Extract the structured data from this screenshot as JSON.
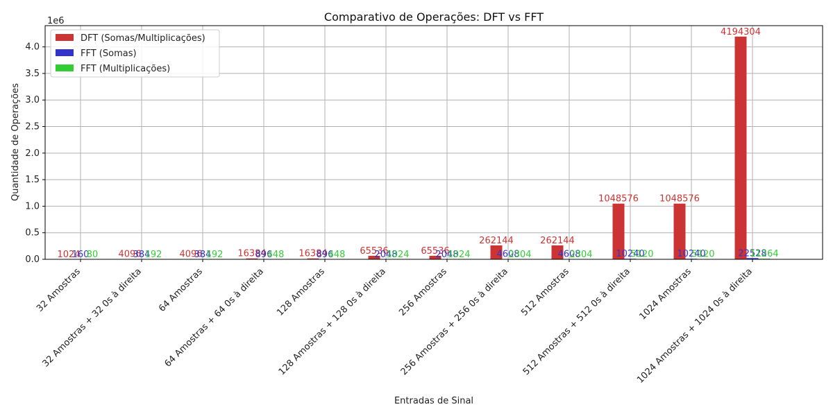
{
  "chart_data": {
    "type": "bar",
    "title": "Comparativo de Operações: DFT vs FFT",
    "xlabel": "Entradas de Sinal",
    "ylabel": "Quantidade de Operações",
    "y_scale_label": "1e6",
    "ylim": [
      0,
      4.4
    ],
    "yticks": [
      "0.0",
      "0.5",
      "1.0",
      "1.5",
      "2.0",
      "2.5",
      "3.0",
      "3.5",
      "4.0"
    ],
    "grid": true,
    "legend_position": "top-left",
    "categories": [
      "32 Amostras",
      "32 Amostras + 32 0s à direita",
      "64 Amostras",
      "64 Amostras + 64 0s à direita",
      "128 Amostras",
      "128 Amostras + 128 0s à direita",
      "256 Amostras",
      "256 Amostras + 256 0s à direita",
      "512 Amostras",
      "512 Amostras + 512 0s à direita",
      "1024 Amostras",
      "1024 Amostras + 1024 0s à direita"
    ],
    "series": [
      {
        "name": "DFT (Somas/Multiplicações)",
        "color": "#cc3333",
        "values": [
          1024,
          4096,
          4096,
          16384,
          16384,
          65536,
          65536,
          262144,
          262144,
          1048576,
          1048576,
          4194304
        ]
      },
      {
        "name": "FFT (Somas)",
        "color": "#3333cc",
        "values": [
          160,
          384,
          384,
          896,
          896,
          2048,
          2048,
          4608,
          4608,
          10240,
          10240,
          22528
        ]
      },
      {
        "name": "FFT (Multiplicações)",
        "color": "#33cc33",
        "values": [
          80,
          192,
          192,
          448,
          448,
          1024,
          1024,
          2304,
          2304,
          5120,
          5120,
          11264
        ]
      }
    ]
  }
}
